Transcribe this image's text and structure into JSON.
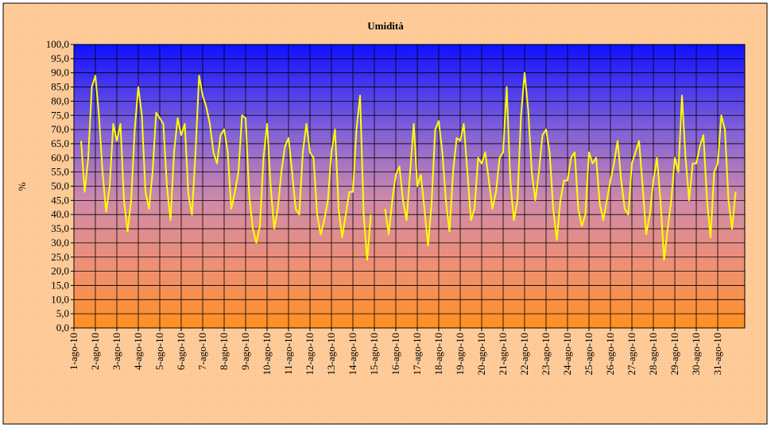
{
  "chart_data": {
    "type": "line",
    "title": "Umidità",
    "y_label": "%",
    "categories": [
      "1-ago-10",
      null,
      null,
      null,
      null,
      null,
      "2-ago-10",
      null,
      null,
      null,
      null,
      null,
      "3-ago-10",
      null,
      null,
      null,
      null,
      null,
      "4-ago-10",
      null,
      null,
      null,
      null,
      null,
      "5-ago-10",
      null,
      null,
      null,
      null,
      null,
      "6-ago-10",
      null,
      null,
      null,
      null,
      null,
      "7-ago-10",
      null,
      null,
      null,
      null,
      null,
      "8-ago-10",
      null,
      null,
      null,
      null,
      null,
      "9-ago-10",
      null,
      null,
      null,
      null,
      null,
      "10-ago-10",
      null,
      null,
      null,
      null,
      null,
      "11-ago-10",
      null,
      null,
      null,
      null,
      null,
      "12-ago-10",
      null,
      null,
      null,
      null,
      null,
      "13-ago-10",
      null,
      null,
      null,
      null,
      null,
      "14-ago-10",
      null,
      null,
      null,
      null,
      null,
      "15-ago-10",
      null,
      null,
      null,
      null,
      null,
      "16-ago-10",
      null,
      null,
      null,
      null,
      null,
      "17-ago-10",
      null,
      null,
      null,
      null,
      null,
      "18-ago-10",
      null,
      null,
      null,
      null,
      null,
      "19-ago-10",
      null,
      null,
      null,
      null,
      null,
      "20-ago-10",
      null,
      null,
      null,
      null,
      null,
      "21-ago-10",
      null,
      null,
      null,
      null,
      null,
      "22-ago-10",
      null,
      null,
      null,
      null,
      null,
      "23-ago-10",
      null,
      null,
      null,
      null,
      null,
      "24-ago-10",
      null,
      null,
      null,
      null,
      null,
      "25-ago-10",
      null,
      null,
      null,
      null,
      null,
      "26-ago-10",
      null,
      null,
      null,
      null,
      null,
      "27-ago-10",
      null,
      null,
      null,
      null,
      null,
      "28-ago-10",
      null,
      null,
      null,
      null,
      null,
      "29-ago-10",
      null,
      null,
      null,
      null,
      null,
      "30-ago-10",
      null,
      null,
      null,
      null,
      null,
      "31-ago-10",
      null,
      null,
      null,
      null,
      null
    ],
    "series": [
      {
        "name": "Umidità",
        "color": "#ffff00",
        "values": [
          null,
          null,
          66,
          48,
          60,
          85,
          89,
          75,
          55,
          41,
          50,
          72,
          66,
          72,
          45,
          34,
          45,
          70,
          85,
          75,
          48,
          42,
          55,
          76,
          74,
          72,
          50,
          38,
          62,
          74,
          68,
          72,
          47,
          40,
          62,
          89,
          82,
          78,
          72,
          62,
          58,
          68,
          70,
          62,
          42,
          48,
          55,
          75,
          74,
          47,
          35,
          30,
          36,
          60,
          72,
          50,
          35,
          42,
          55,
          64,
          67,
          55,
          42,
          40,
          62,
          72,
          62,
          60,
          40,
          33,
          38,
          45,
          62,
          70,
          42,
          32,
          40,
          48,
          48,
          70,
          82,
          40,
          24,
          40,
          null,
          null,
          null,
          42,
          33,
          45,
          54,
          57,
          45,
          38,
          55,
          72,
          50,
          54,
          42,
          29,
          44,
          70,
          73,
          62,
          45,
          34,
          55,
          67,
          66,
          72,
          55,
          38,
          42,
          60,
          58,
          62,
          52,
          42,
          48,
          60,
          62,
          85,
          52,
          38,
          45,
          75,
          90,
          77,
          55,
          45,
          55,
          68,
          70,
          62,
          42,
          31,
          45,
          52,
          52,
          60,
          62,
          42,
          36,
          40,
          62,
          58,
          60,
          44,
          38,
          45,
          52,
          58,
          66,
          52,
          42,
          40,
          58,
          62,
          66,
          50,
          33,
          40,
          52,
          60,
          45,
          24,
          35,
          45,
          60,
          55,
          82,
          60,
          45,
          58,
          58,
          64,
          68,
          45,
          32,
          55,
          58,
          75,
          70,
          45,
          35,
          48
        ]
      }
    ],
    "ylim": [
      0,
      100
    ],
    "yticks": [
      {
        "value": 0,
        "label": "0,0"
      },
      {
        "value": 5,
        "label": "5,0"
      },
      {
        "value": 10,
        "label": "10,0"
      },
      {
        "value": 15,
        "label": "15,0"
      },
      {
        "value": 20,
        "label": "20,0"
      },
      {
        "value": 25,
        "label": "25,0"
      },
      {
        "value": 30,
        "label": "30,0"
      },
      {
        "value": 35,
        "label": "35,0"
      },
      {
        "value": 40,
        "label": "40,0"
      },
      {
        "value": 45,
        "label": "45,0"
      },
      {
        "value": 50,
        "label": "50,0"
      },
      {
        "value": 55,
        "label": "55,0"
      },
      {
        "value": 60,
        "label": "60,0"
      },
      {
        "value": 65,
        "label": "65,0"
      },
      {
        "value": 70,
        "label": "70,0"
      },
      {
        "value": 75,
        "label": "75,0"
      },
      {
        "value": 80,
        "label": "80,0"
      },
      {
        "value": 85,
        "label": "85,0"
      },
      {
        "value": 90,
        "label": "90,0"
      },
      {
        "value": 95,
        "label": "95,0"
      },
      {
        "value": 100,
        "label": "100,0"
      }
    ],
    "grid": true
  }
}
